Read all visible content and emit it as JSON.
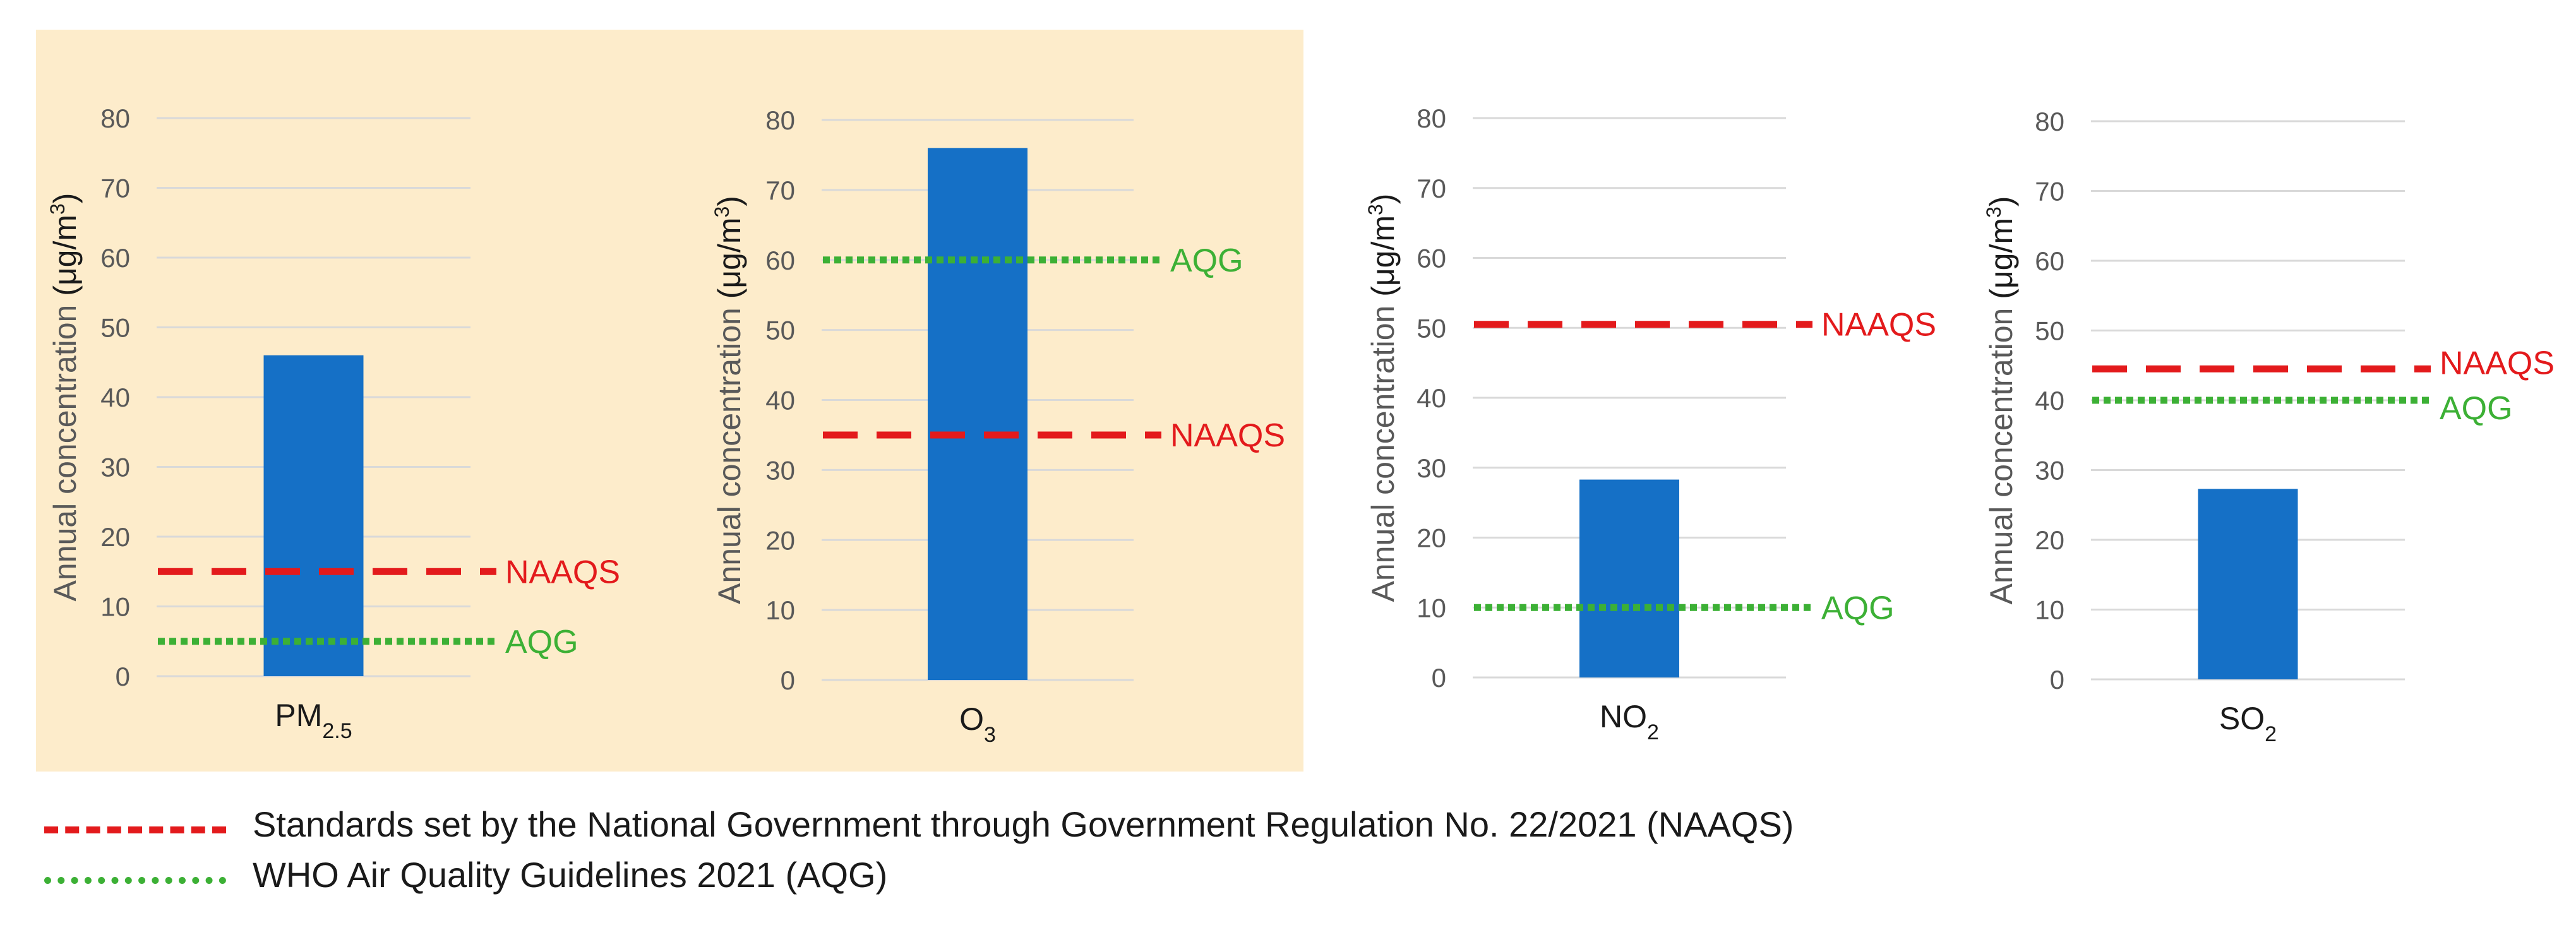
{
  "colors": {
    "highlight": "#fdeccb",
    "bar": "#1570c6",
    "naaqs": "#e31a1c",
    "aqg": "#3cb035",
    "grid": "#d9d9d9",
    "tick": "#595959",
    "ylabel": "#595959",
    "category": "#1a1a1a"
  },
  "chart_data": [
    {
      "type": "bar",
      "pollutant": "PM2.5",
      "category": {
        "base": "PM",
        "sub": "2.5"
      },
      "value": 46,
      "ylim": [
        0,
        80
      ],
      "yticks": [
        "0",
        "10",
        "20",
        "30",
        "40",
        "50",
        "60",
        "70",
        "80"
      ],
      "ylabel": {
        "text": "Annual concentration",
        "unit_base": "(μg/m",
        "unit_sup": "3",
        "unit_close": ")"
      },
      "naaqs": 15,
      "naaqs_label": "NAAQS",
      "aqg": 5,
      "aqg_label": "AQG"
    },
    {
      "type": "bar",
      "pollutant": "O3",
      "category": {
        "base": "O",
        "sub": "3"
      },
      "value": 76,
      "ylim": [
        0,
        80
      ],
      "yticks": [
        "0",
        "10",
        "20",
        "30",
        "40",
        "50",
        "60",
        "70",
        "80"
      ],
      "ylabel": {
        "text": "Annual concentration",
        "unit_base": "(μg/m",
        "unit_sup": "3",
        "unit_close": ")"
      },
      "naaqs": 35,
      "naaqs_label": "NAAQS",
      "aqg": 60,
      "aqg_label": "AQG"
    },
    {
      "type": "bar",
      "pollutant": "NO2",
      "category": {
        "base": "NO",
        "sub": "2"
      },
      "value": 28.3,
      "ylim": [
        0,
        80
      ],
      "yticks": [
        "0",
        "10",
        "20",
        "30",
        "40",
        "50",
        "60",
        "70",
        "80"
      ],
      "ylabel": {
        "text": "Annual concentration",
        "unit_base": "(μg/m",
        "unit_sup": "3",
        "unit_close": ")"
      },
      "naaqs": 50.5,
      "naaqs_label": "NAAQS",
      "aqg": 10,
      "aqg_label": "AQG"
    },
    {
      "type": "bar",
      "pollutant": "SO2",
      "category": {
        "base": "SO",
        "sub": "2"
      },
      "value": 27.3,
      "ylim": [
        0,
        80
      ],
      "yticks": [
        "0",
        "10",
        "20",
        "30",
        "40",
        "50",
        "60",
        "70",
        "80"
      ],
      "ylabel": {
        "text": "Annual concentration",
        "unit_base": "(μg/m",
        "unit_sup": "3",
        "unit_close": ")"
      },
      "naaqs": 44.5,
      "naaqs_label": "NAAQS",
      "aqg": 40,
      "aqg_label": "AQG"
    }
  ],
  "legend": {
    "naaqs": "Standards set by the National Government through Government Regulation No. 22/2021 (NAAQS)",
    "aqg": "WHO Air Quality Guidelines 2021 (AQG)"
  }
}
